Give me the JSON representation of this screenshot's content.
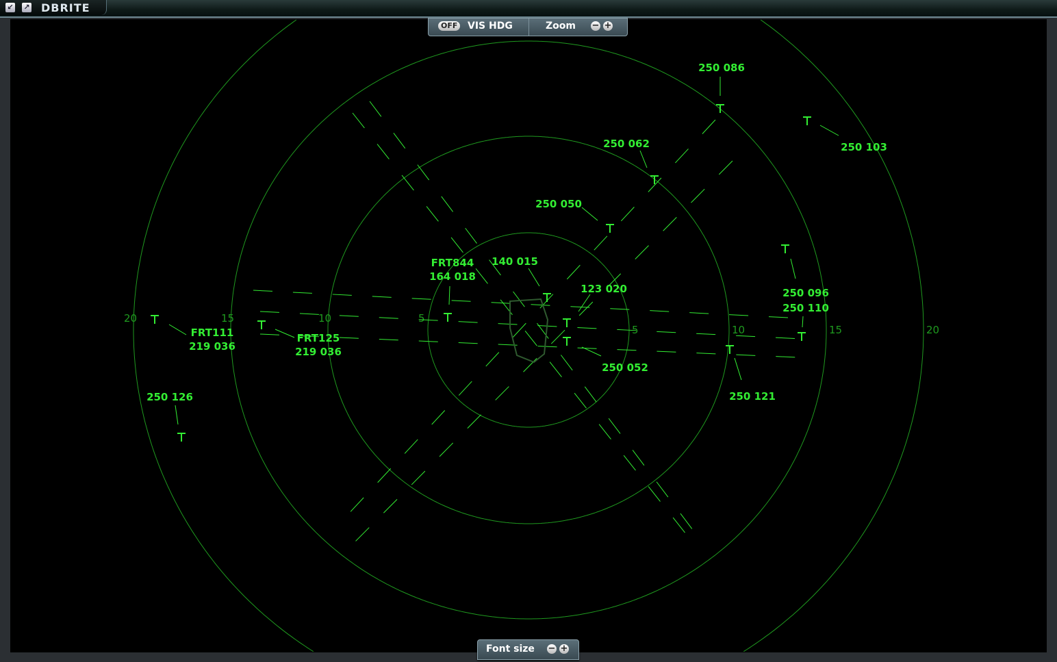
{
  "window": {
    "title": "DBRITE",
    "icons": [
      "popout-icon",
      "edit-icon"
    ]
  },
  "toolbar": {
    "vis_hdg_toggle": "OFF",
    "vis_hdg_label": "VIS HDG",
    "zoom_label": "Zoom",
    "zoom_out": "−",
    "zoom_in": "+"
  },
  "footer": {
    "font_size_label": "Font size",
    "font_minus": "−",
    "font_plus": "+"
  },
  "colors": {
    "radar_green": "#33ee33",
    "ring_green": "#1f9a1f",
    "background": "#000000"
  },
  "range_rings": [
    "5",
    "10",
    "15",
    "20"
  ],
  "targets": [
    {
      "lines": [
        "250 086"
      ]
    },
    {
      "lines": [
        "250 103"
      ]
    },
    {
      "lines": [
        "250 062"
      ]
    },
    {
      "lines": [
        "250 050"
      ]
    },
    {
      "lines": [
        "250 096"
      ]
    },
    {
      "lines": [
        "250 110"
      ]
    },
    {
      "lines": [
        "140 015"
      ]
    },
    {
      "lines": [
        "FRT844",
        "164 018"
      ]
    },
    {
      "lines": [
        "123 020"
      ]
    },
    {
      "lines": [
        "250 052"
      ]
    },
    {
      "lines": [
        "250 121"
      ]
    },
    {
      "lines": [
        "FRT111",
        "219 036"
      ]
    },
    {
      "lines": [
        "FRT125",
        "219 036"
      ]
    },
    {
      "lines": [
        "250 126"
      ]
    }
  ]
}
